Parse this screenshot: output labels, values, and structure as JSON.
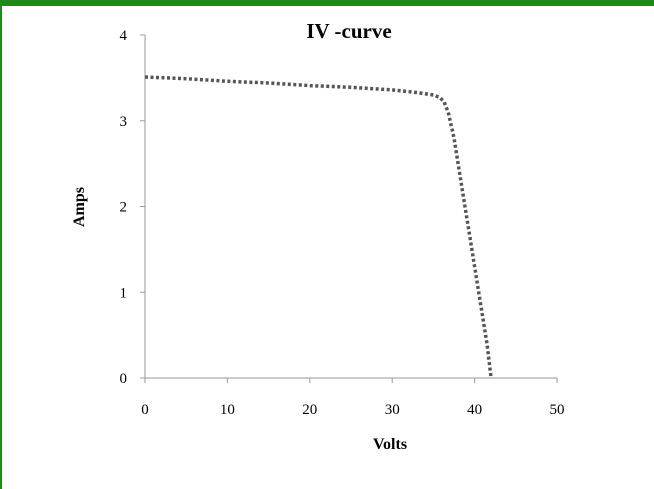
{
  "colors": {
    "frame_accent": "#1a8a1a",
    "axis": "#9a9a9a",
    "series_line": "#555555"
  },
  "chart_data": {
    "type": "line",
    "title": "IV -curve",
    "xlabel": "Volts",
    "ylabel": "Amps",
    "xlim": [
      0,
      50
    ],
    "ylim": [
      0,
      4
    ],
    "x_ticks": [
      "0",
      "10",
      "20",
      "30",
      "40",
      "50"
    ],
    "y_ticks": [
      "0",
      "1",
      "2",
      "3",
      "4"
    ],
    "grid": false,
    "legend": "none",
    "series": [
      {
        "line_style": "dotted",
        "x": [
          0,
          5,
          10,
          15,
          20,
          25,
          30,
          33,
          35,
          35.8,
          36.3,
          36.8,
          37.5,
          38.5,
          39.5,
          40.5,
          41.5,
          42
        ],
        "y": [
          3.51,
          3.49,
          3.46,
          3.44,
          3.41,
          3.39,
          3.36,
          3.33,
          3.3,
          3.27,
          3.22,
          3.1,
          2.8,
          2.2,
          1.6,
          1.0,
          0.4,
          0.0
        ]
      }
    ]
  }
}
